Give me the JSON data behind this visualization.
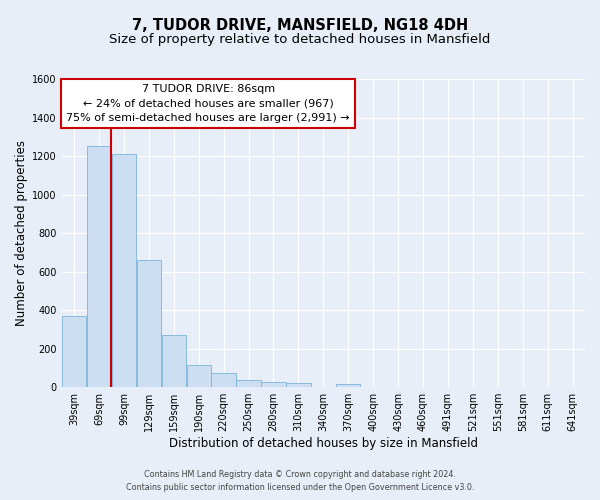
{
  "title": "7, TUDOR DRIVE, MANSFIELD, NG18 4DH",
  "subtitle": "Size of property relative to detached houses in Mansfield",
  "xlabel": "Distribution of detached houses by size in Mansfield",
  "ylabel": "Number of detached properties",
  "categories": [
    "39sqm",
    "69sqm",
    "99sqm",
    "129sqm",
    "159sqm",
    "190sqm",
    "220sqm",
    "250sqm",
    "280sqm",
    "310sqm",
    "340sqm",
    "370sqm",
    "400sqm",
    "430sqm",
    "460sqm",
    "491sqm",
    "521sqm",
    "551sqm",
    "581sqm",
    "611sqm",
    "641sqm"
  ],
  "bar_values": [
    370,
    1250,
    1210,
    660,
    270,
    115,
    75,
    38,
    25,
    20,
    0,
    15,
    0,
    0,
    0,
    0,
    0,
    0,
    0,
    0,
    0
  ],
  "bar_color": "#ccdff2",
  "bar_edge_color": "#7ab3d8",
  "vline_x_index": 1,
  "vline_color": "#cc0000",
  "ylim": [
    0,
    1600
  ],
  "yticks": [
    0,
    200,
    400,
    600,
    800,
    1000,
    1200,
    1400,
    1600
  ],
  "annotation_title": "7 TUDOR DRIVE: 86sqm",
  "annotation_line1": "← 24% of detached houses are smaller (967)",
  "annotation_line2": "75% of semi-detached houses are larger (2,991) →",
  "annotation_box_facecolor": "#ffffff",
  "annotation_box_edgecolor": "#cc0000",
  "footer1": "Contains HM Land Registry data © Crown copyright and database right 2024.",
  "footer2": "Contains public sector information licensed under the Open Government Licence v3.0.",
  "fig_facecolor": "#e8eef7",
  "plot_facecolor": "#e8eef7",
  "grid_color": "#ffffff",
  "title_fontsize": 10.5,
  "subtitle_fontsize": 9.5,
  "tick_fontsize": 7,
  "ylabel_fontsize": 8.5,
  "xlabel_fontsize": 8.5,
  "footer_fontsize": 5.8,
  "annot_fontsize": 8
}
